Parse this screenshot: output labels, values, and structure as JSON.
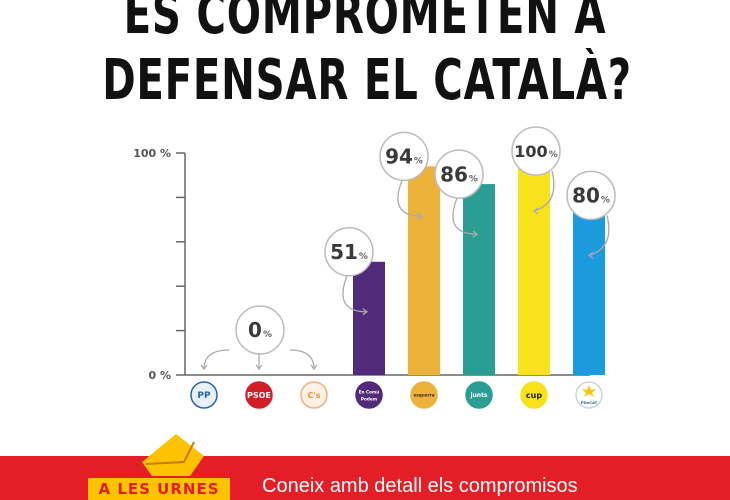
{
  "title": {
    "line1": "ES COMPROMETEN A",
    "line2": "DEFENSAR EL CATALÀ?"
  },
  "chart_data": {
    "type": "bar",
    "title": "ES COMPROMETEN A DEFENSAR EL CATALÀ?",
    "xlabel": "",
    "ylabel": "",
    "ylim": [
      0,
      100
    ],
    "y_tick_labels": [
      "0 %",
      "100 %"
    ],
    "y_ticks": [
      0,
      20,
      40,
      60,
      80,
      100
    ],
    "grid": false,
    "categories": [
      "PP",
      "PSOE",
      "C's",
      "En Comú Podem",
      "Esquerra",
      "Junts",
      "CUP",
      "PDeCAT"
    ],
    "values": [
      0,
      0,
      0,
      51,
      94,
      86,
      100,
      80
    ],
    "bar_colors": [
      "#2a64a8",
      "#d21f26",
      "#f08a2c",
      "#512b79",
      "#ecb23a",
      "#2b9e94",
      "#f8e21c",
      "#1b9ade"
    ],
    "annotations": [
      {
        "label": "0",
        "suffix": "%",
        "applies_to": [
          "PP",
          "PSOE",
          "C's"
        ]
      },
      {
        "label": "51",
        "suffix": "%",
        "applies_to": [
          "En Comú Podem"
        ]
      },
      {
        "label": "94",
        "suffix": "%",
        "applies_to": [
          "Esquerra"
        ]
      },
      {
        "label": "86",
        "suffix": "%",
        "applies_to": [
          "Junts"
        ]
      },
      {
        "label": "100",
        "suffix": "%",
        "applies_to": [
          "CUP"
        ]
      },
      {
        "label": "80",
        "suffix": "%",
        "applies_to": [
          "PDeCAT"
        ]
      }
    ],
    "logos": [
      {
        "name": "PP",
        "text": "PP",
        "bg": "#e8f1fa",
        "fg": "#2a64a8",
        "ring": "#2a64a8"
      },
      {
        "name": "PSOE",
        "text": "PSOE",
        "bg": "#d21f26",
        "fg": "#ffffff",
        "ring": "#d21f26"
      },
      {
        "name": "C's",
        "text": "C's",
        "bg": "#fff2e4",
        "fg": "#f08a2c",
        "ring": "#f0b07a"
      },
      {
        "name": "En Comú Podem",
        "text": "En Comú Podem",
        "bg": "#512b79",
        "fg": "#ffffff",
        "ring": "#512b79"
      },
      {
        "name": "Esquerra",
        "text": "esquerra",
        "bg": "#ecb23a",
        "fg": "#3a2a10",
        "ring": "#ecb23a"
      },
      {
        "name": "Junts",
        "text": "junts",
        "bg": "#2b9e94",
        "fg": "#ffffff",
        "ring": "#2b9e94"
      },
      {
        "name": "CUP",
        "text": "cup",
        "bg": "#f8e21c",
        "fg": "#222222",
        "ring": "#f8e21c"
      },
      {
        "name": "PDeCAT",
        "text": "PDeCAT",
        "bg": "#ffffff",
        "fg": "#2a64a8",
        "ring": "#c9d3e6"
      }
    ]
  },
  "footer": {
    "badge": "A LES URNES",
    "text": "Coneix amb detall els compromisos",
    "bg_color": "#e41e26",
    "badge_color": "#fdc300"
  }
}
